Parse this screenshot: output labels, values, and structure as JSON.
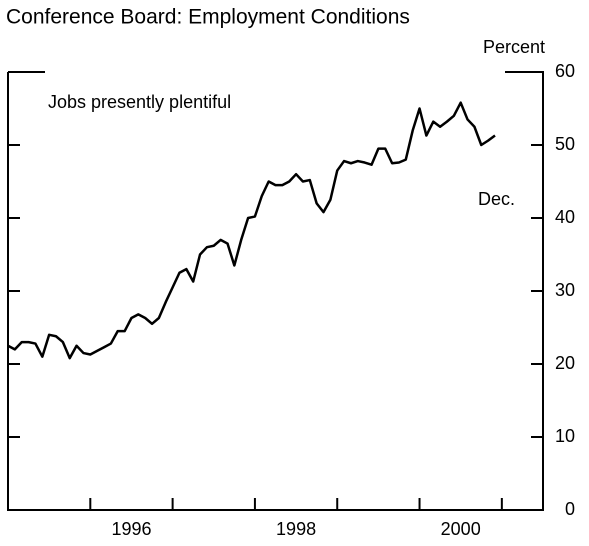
{
  "chart_data": {
    "type": "line",
    "title": "Conference Board: Employment Conditions",
    "y_label": "Percent",
    "annotations": [
      "Jobs presently plentiful",
      "Dec."
    ],
    "x": [
      1995,
      1995.083,
      1995.167,
      1995.25,
      1995.333,
      1995.417,
      1995.5,
      1995.583,
      1995.667,
      1995.75,
      1995.833,
      1995.917,
      1996,
      1996.083,
      1996.167,
      1996.25,
      1996.333,
      1996.417,
      1996.5,
      1996.583,
      1996.667,
      1996.75,
      1996.833,
      1996.917,
      1997,
      1997.083,
      1997.167,
      1997.25,
      1997.333,
      1997.417,
      1997.5,
      1997.583,
      1997.667,
      1997.75,
      1997.833,
      1997.917,
      1998,
      1998.083,
      1998.167,
      1998.25,
      1998.333,
      1998.417,
      1998.5,
      1998.583,
      1998.667,
      1998.75,
      1998.833,
      1998.917,
      1999,
      1999.083,
      1999.167,
      1999.25,
      1999.333,
      1999.417,
      1999.5,
      1999.583,
      1999.667,
      1999.75,
      1999.833,
      1999.917,
      2000,
      2000.083,
      2000.167,
      2000.25,
      2000.333,
      2000.417,
      2000.5,
      2000.583,
      2000.667,
      2000.75,
      2000.833,
      2000.917
    ],
    "series": [
      {
        "name": "Jobs presently plentiful",
        "color": "#000000",
        "values": [
          22.5,
          22,
          23,
          23,
          22.8,
          21,
          24,
          23.8,
          23,
          20.8,
          22.5,
          21.5,
          21.3,
          21.8,
          22.3,
          22.8,
          24.5,
          24.5,
          26.3,
          26.8,
          26.3,
          25.5,
          26.3,
          28.5,
          30.5,
          32.5,
          33,
          31.3,
          35,
          36,
          36.2,
          37,
          36.5,
          33.5,
          37,
          40,
          40.2,
          43,
          45,
          44.5,
          44.5,
          45,
          46,
          45,
          45.2,
          42,
          40.8,
          42.5,
          46.5,
          47.8,
          47.5,
          47.8,
          47.6,
          47.3,
          49.5,
          49.5,
          47.5,
          47.6,
          48,
          52,
          55,
          51.3,
          53.2,
          52.5,
          53.2,
          54,
          55.8,
          53.5,
          52.5,
          50,
          50.6,
          51.3
        ]
      }
    ],
    "xlim": [
      1995,
      2001.5
    ],
    "xticks": [
      {
        "value": 1996.5,
        "label": "1996"
      },
      {
        "value": 1998.5,
        "label": "1998"
      },
      {
        "value": 2000.5,
        "label": "2000"
      }
    ],
    "xminor": [
      1996,
      1997,
      1998,
      1999,
      2000,
      2001
    ],
    "ylim": [
      0,
      60
    ],
    "yticks": [
      0,
      10,
      20,
      30,
      40,
      50,
      60
    ]
  }
}
